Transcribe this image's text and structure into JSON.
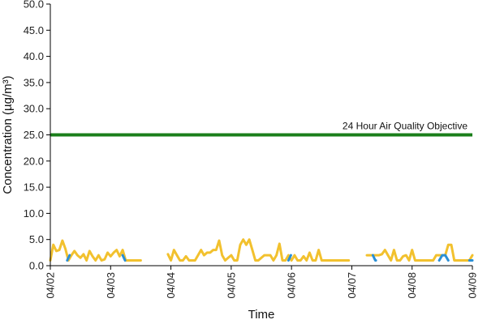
{
  "chart_data": {
    "type": "line",
    "title": "",
    "xlabel": "Time",
    "ylabel": "Concentration (µg/m³)",
    "ylim": [
      0,
      50
    ],
    "yticks": [
      0,
      5,
      10,
      15,
      20,
      25,
      30,
      35,
      40,
      45,
      50
    ],
    "ytick_labels": [
      "0.0",
      "5.0",
      "10.0",
      "15.0",
      "20.0",
      "25.0",
      "30.0",
      "35.0",
      "40.0",
      "45.0",
      "50.0"
    ],
    "xlim": [
      "04/02",
      "04/09"
    ],
    "xtick_labels": [
      "04/02",
      "04/03",
      "04/04",
      "04/05",
      "04/06",
      "04/07",
      "04/08",
      "04/09"
    ],
    "grid": false,
    "legend": "none",
    "colors": {
      "objective": "#1a7f1a",
      "series_a": "#f2c12e",
      "series_b": "#2a8fd6",
      "axis": "#000000"
    },
    "objective": {
      "label": "24 Hour Air Quality Objective",
      "value": 25
    },
    "series": [
      {
        "color": "#f2c12e",
        "x": [
          0.0,
          0.05,
          0.1,
          0.15,
          0.2,
          0.25,
          0.3,
          0.35,
          0.4,
          0.45,
          0.5,
          0.55,
          0.6,
          0.65,
          0.7,
          0.75,
          0.8,
          0.85,
          0.9,
          0.95,
          1.0,
          1.05,
          1.1,
          1.15,
          1.2,
          1.25,
          1.3,
          1.35,
          1.4,
          1.45,
          1.5,
          1.95,
          2.0,
          2.05,
          2.1,
          2.15,
          2.2,
          2.25,
          2.3,
          2.35,
          2.4,
          2.45,
          2.5,
          2.55,
          2.6,
          2.65,
          2.7,
          2.75,
          2.8,
          2.85,
          2.9,
          2.95,
          3.0,
          3.05,
          3.1,
          3.15,
          3.2,
          3.25,
          3.3,
          3.35,
          3.4,
          3.45,
          3.5,
          3.55,
          3.6,
          3.65,
          3.7,
          3.75,
          3.8,
          3.85,
          3.9,
          3.95,
          4.0,
          4.05,
          4.1,
          4.15,
          4.2,
          4.25,
          4.3,
          4.35,
          4.4,
          4.45,
          4.5,
          4.55,
          4.6,
          4.65,
          4.7,
          4.75,
          4.8,
          4.85,
          4.9,
          4.95,
          5.25,
          5.3,
          5.35,
          5.4,
          5.45,
          5.5,
          5.55,
          5.6,
          5.65,
          5.7,
          5.75,
          5.8,
          5.85,
          5.9,
          5.95,
          6.0,
          6.05,
          6.1,
          6.15,
          6.2,
          6.25,
          6.3,
          6.35,
          6.4,
          6.45,
          6.5,
          6.55,
          6.6,
          6.65,
          6.7,
          6.75,
          6.8,
          6.85,
          6.9,
          6.95,
          7.0
        ],
        "y": [
          1.0,
          4.0,
          2.8,
          3.0,
          4.8,
          3.2,
          1.0,
          2.0,
          2.8,
          2.0,
          1.5,
          2.2,
          1.0,
          2.8,
          1.8,
          1.0,
          2.0,
          1.0,
          1.2,
          2.5,
          1.8,
          2.5,
          3.0,
          1.8,
          3.0,
          1.0,
          1.0,
          1.0,
          1.0,
          1.0,
          1.0,
          2.2,
          1.0,
          3.0,
          2.0,
          1.0,
          1.0,
          1.8,
          1.0,
          1.0,
          1.0,
          2.0,
          3.0,
          2.0,
          2.5,
          2.5,
          3.0,
          3.0,
          4.8,
          2.0,
          1.0,
          1.5,
          2.0,
          1.0,
          1.0,
          4.0,
          5.0,
          4.0,
          5.0,
          3.0,
          1.0,
          1.0,
          1.5,
          2.0,
          2.0,
          2.0,
          1.0,
          2.0,
          4.2,
          1.0,
          1.0,
          2.0,
          1.0,
          2.0,
          1.0,
          1.0,
          1.8,
          1.0,
          2.5,
          1.0,
          1.0,
          3.0,
          1.0,
          1.0,
          1.0,
          1.0,
          1.0,
          1.0,
          1.0,
          1.0,
          1.0,
          1.0,
          2.0,
          2.0,
          2.0,
          2.0,
          2.0,
          2.2,
          3.0,
          2.0,
          1.0,
          3.0,
          1.0,
          1.0,
          1.8,
          2.0,
          1.0,
          3.0,
          1.0,
          1.0,
          1.0,
          1.0,
          1.0,
          1.0,
          1.0,
          2.0,
          2.0,
          2.0,
          2.0,
          4.0,
          4.0,
          1.0,
          1.0,
          1.0,
          1.0,
          1.0,
          1.0,
          2.0
        ]
      },
      {
        "color": "#2a8fd6",
        "x": [
          0.0,
          0.28,
          0.32,
          1.2,
          1.24,
          3.95,
          3.99,
          5.35,
          5.39,
          5.4,
          6.45,
          6.5,
          6.55,
          6.6,
          6.95,
          7.0
        ],
        "y": [
          1.0,
          1.0,
          2.0,
          2.0,
          1.0,
          1.0,
          2.0,
          2.0,
          1.0,
          1.0,
          1.0,
          2.0,
          2.0,
          1.0,
          1.0,
          1.0
        ]
      }
    ]
  }
}
